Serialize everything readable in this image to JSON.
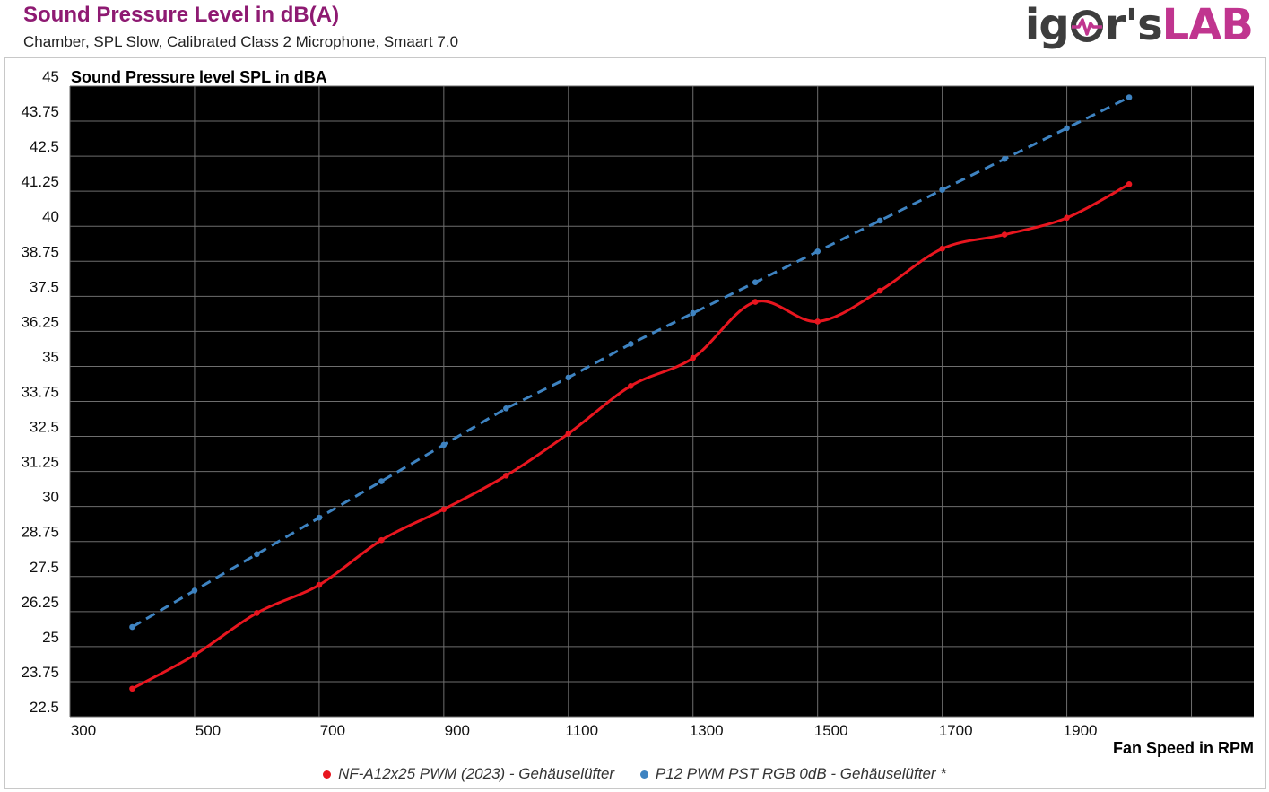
{
  "header": {
    "title": "Sound Pressure Level in dB(A)",
    "subtitle": "Chamber, SPL Slow, Calibrated Class 2 Microphone, Smaart 7.0",
    "logo_text_dark": "ig",
    "logo_text_dark2": "r's",
    "logo_text_accent": "LAB"
  },
  "colors": {
    "plot_background": "#000000",
    "grid": "#6e6e6e",
    "series_red": "#e8161f",
    "series_blue": "#3e83c1",
    "title_color": "#8e1a72",
    "logo_accent": "#c0358f"
  },
  "chart_data": {
    "type": "line",
    "title": "Sound Pressure Level in dB(A)",
    "subtitle": "Chamber, SPL Slow, Calibrated Class 2 Microphone, Smaart 7.0",
    "ylabel": "Sound Pressure level SPL in dBA",
    "xlabel": "Fan Speed in RPM",
    "xlim": [
      300,
      2200
    ],
    "ylim": [
      22.5,
      45
    ],
    "x_ticks": [
      300,
      500,
      700,
      900,
      1100,
      1300,
      1500,
      1700,
      1900
    ],
    "y_ticks": [
      "22.5",
      "23.75",
      "25",
      "26.25",
      "27.5",
      "28.75",
      "30",
      "31.25",
      "32.5",
      "33.75",
      "35",
      "36.25",
      "37.5",
      "38.75",
      "40",
      "41.25",
      "42.5",
      "43.75",
      "45"
    ],
    "x_grid_lines": [
      300,
      500,
      700,
      900,
      1100,
      1300,
      1500,
      1700,
      1900,
      2100
    ],
    "grid": true,
    "legend_position": "bottom",
    "series": [
      {
        "name": "NF-A12x25 PWM (2023) - Gehäuselüfter",
        "style": "solid",
        "smooth": true,
        "x": [
          400,
          500,
          600,
          700,
          800,
          900,
          1000,
          1100,
          1200,
          1300,
          1400,
          1500,
          1600,
          1700,
          1800,
          1900,
          2000
        ],
        "y": [
          23.5,
          24.7,
          26.2,
          27.2,
          28.8,
          29.9,
          31.1,
          32.6,
          34.3,
          35.3,
          37.3,
          36.6,
          37.7,
          39.2,
          39.7,
          40.3,
          41.5
        ]
      },
      {
        "name": "P12 PWM PST RGB 0dB - Gehäuselüfter *",
        "style": "dashed",
        "smooth": false,
        "x": [
          400,
          500,
          600,
          700,
          800,
          900,
          1000,
          1100,
          1200,
          1300,
          1400,
          1500,
          1600,
          1700,
          1800,
          1900,
          2000
        ],
        "y": [
          25.7,
          27.0,
          28.3,
          29.6,
          30.9,
          32.2,
          33.5,
          34.6,
          35.8,
          36.9,
          38.0,
          39.1,
          40.2,
          41.3,
          42.4,
          43.5,
          44.6
        ]
      }
    ]
  }
}
